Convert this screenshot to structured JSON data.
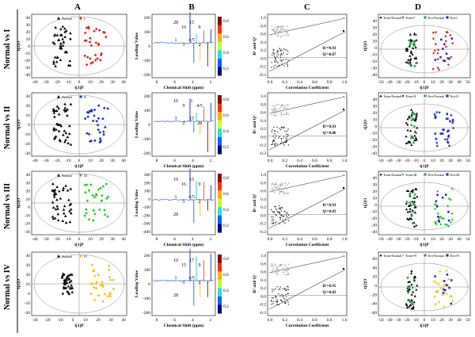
{
  "columns": [
    "A",
    "B",
    "C",
    "D"
  ],
  "rows": [
    {
      "label": "Normal vs I",
      "group": "I",
      "color": "#e02020",
      "marker": "diamond"
    },
    {
      "label": "Normal vs II",
      "group": "II",
      "color": "#1a2fc8",
      "marker": "diamond"
    },
    {
      "label": "Normal vs III",
      "group": "III",
      "color": "#22cc22",
      "marker": "diamond"
    },
    {
      "label": "Normal vs IV",
      "group": "IV",
      "color": "#f2c40e",
      "marker": "diamond"
    }
  ],
  "scores": {
    "normal_label": "Normal",
    "xlabel": "t[1]P",
    "ylabel": "t[2]O",
    "xticks": [
      [
        "-40",
        "-30",
        "-20",
        "-10",
        "0",
        "10",
        "20",
        "30",
        "40"
      ],
      [
        "-40",
        "-30",
        "-20",
        "-10",
        "0",
        "10",
        "20",
        "30",
        "40"
      ],
      [
        "-40",
        "-30",
        "-20",
        "-10",
        "0",
        "10",
        "20",
        "30",
        "40"
      ],
      [
        "-30",
        "-20",
        "-10",
        "0",
        "10",
        "20",
        "30",
        "40"
      ]
    ],
    "yticks": [
      [
        "40",
        "30",
        "20",
        "10",
        "0",
        "-10",
        "-20",
        "-30",
        "-40"
      ],
      [
        "30",
        "20",
        "10",
        "0",
        "-10",
        "-20",
        "-30"
      ],
      [
        "40",
        "30",
        "20",
        "10",
        "0",
        "-10",
        "-20",
        "-30"
      ],
      [
        "40",
        "30",
        "20",
        "10",
        "0",
        "-10",
        "-20"
      ]
    ]
  },
  "loadings": {
    "xlabel": "Chemical Shift (ppm)",
    "ylabel": "Loading Value",
    "xticks": [
      "8",
      "6",
      "4",
      "2"
    ],
    "yticks": [
      [
        "200",
        "100",
        "0",
        "-100",
        "-200"
      ],
      [
        "200",
        "100",
        "0",
        "-100",
        "-200"
      ],
      [
        "300",
        "200",
        "100",
        "0",
        "-100",
        "-200",
        "-300",
        "-400"
      ],
      [
        "200",
        "100",
        "0",
        "-100",
        "-200"
      ]
    ],
    "colorbar": [
      "0.8",
      "0.6",
      "0.4",
      "0.2"
    ],
    "peaks": [
      [
        "28",
        "10",
        "15",
        "9",
        "1",
        "3",
        "4/5",
        "2"
      ],
      [
        "10",
        "9",
        "1",
        "4/5",
        "3",
        "2",
        "15",
        "28"
      ],
      [
        "10",
        "16",
        "15",
        "9",
        "1",
        "3",
        "4/5",
        "2",
        "28"
      ],
      [
        "10",
        "15",
        "17",
        "9",
        "1",
        "3",
        "4/5",
        "2",
        "28"
      ]
    ]
  },
  "permutation": {
    "xlabel": "Correlation Coefficient",
    "ylabel": "R² and Q²",
    "xticks": [
      "0.0",
      "0.2",
      "0.4",
      "0.6",
      "0.8",
      "1.0"
    ],
    "yticks": [
      "1.0",
      "0.8",
      "0.6",
      "0.4",
      "0.2",
      "0.0",
      "-0.2",
      "-0.3"
    ],
    "stats": [
      {
        "r2": "R²=0.93",
        "q2": "Q²=0.87"
      },
      {
        "r2": "R²=0.93",
        "q2": "Q²=0.86"
      },
      {
        "r2": "R²=0.93",
        "q2": "Q²=0.83"
      },
      {
        "r2": "R²=0.95",
        "q2": "Q²=0.83"
      }
    ]
  },
  "prediction": {
    "legend": [
      [
        "Train-Normal",
        "Train-I",
        "Test-Normal",
        "Test-I"
      ],
      [
        "Train-Normal",
        "Train-II",
        "Test-Normal",
        "Test-II"
      ],
      [
        "Train-Normal",
        "Train-III",
        "Test-Normal",
        "Test-III"
      ],
      [
        "Train-Normal",
        "Train-IV",
        "Test-Normal",
        "Test-IV"
      ]
    ],
    "xlabel": "t[1]P",
    "ylabel": "t[2]O",
    "xticks": [
      "-50",
      "-40",
      "-30",
      "-20",
      "-10",
      "0",
      "10",
      "20",
      "30",
      "40",
      "50"
    ],
    "yticks": [
      [
        "40",
        "30",
        "20",
        "10",
        "0",
        "-10",
        "-20",
        "-30",
        "-40"
      ],
      [
        "40",
        "30",
        "20",
        "10",
        "0",
        "-10",
        "-20",
        "-30",
        "-40"
      ],
      [
        "40",
        "30",
        "20",
        "10",
        "0",
        "-10",
        "-20",
        "-30",
        "-40"
      ],
      [
        "60",
        "40",
        "20",
        "0",
        "-20",
        "-40",
        "-60"
      ]
    ],
    "colors": {
      "train_normal": "#000000",
      "test_normal": "#22aa44",
      "test_group": "#2a2ad0"
    }
  }
}
